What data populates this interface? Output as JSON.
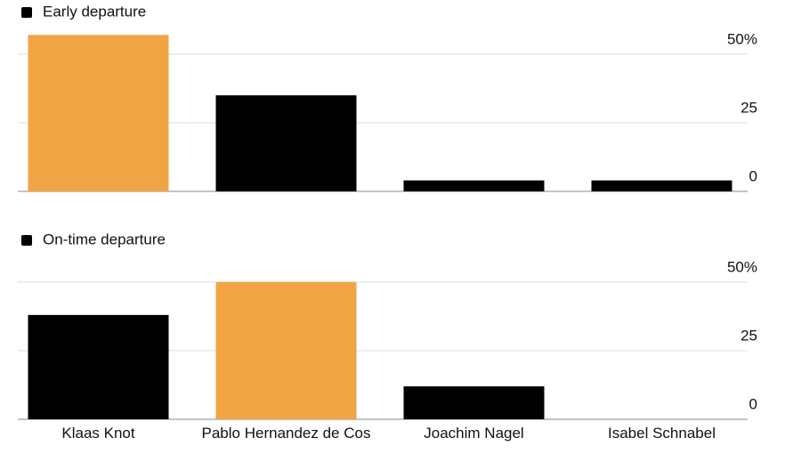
{
  "chart_data": [
    {
      "type": "bar",
      "series": [
        {
          "name": "Early departure",
          "values": [
            57,
            35,
            4,
            4
          ],
          "colors": [
            "#f0a444",
            "#000000",
            "#000000",
            "#000000"
          ]
        }
      ],
      "ylim": [
        0,
        60
      ],
      "yticks": [
        {
          "value": 50,
          "label": "50%"
        },
        25,
        0
      ],
      "grid": true
    },
    {
      "type": "bar",
      "categories": [
        "Klaas Knot",
        "Pablo Hernandez de Cos",
        "Joachim Nagel",
        "Isabel Schnabel"
      ],
      "series": [
        {
          "name": "On-time departure",
          "values": [
            38,
            50,
            12,
            0
          ],
          "colors": [
            "#000000",
            "#f0a444",
            "#000000",
            "#000000"
          ]
        }
      ],
      "ylim": [
        0,
        60
      ],
      "yticks": [
        {
          "value": 50,
          "label": "50%"
        },
        25,
        0
      ],
      "grid": true
    }
  ]
}
